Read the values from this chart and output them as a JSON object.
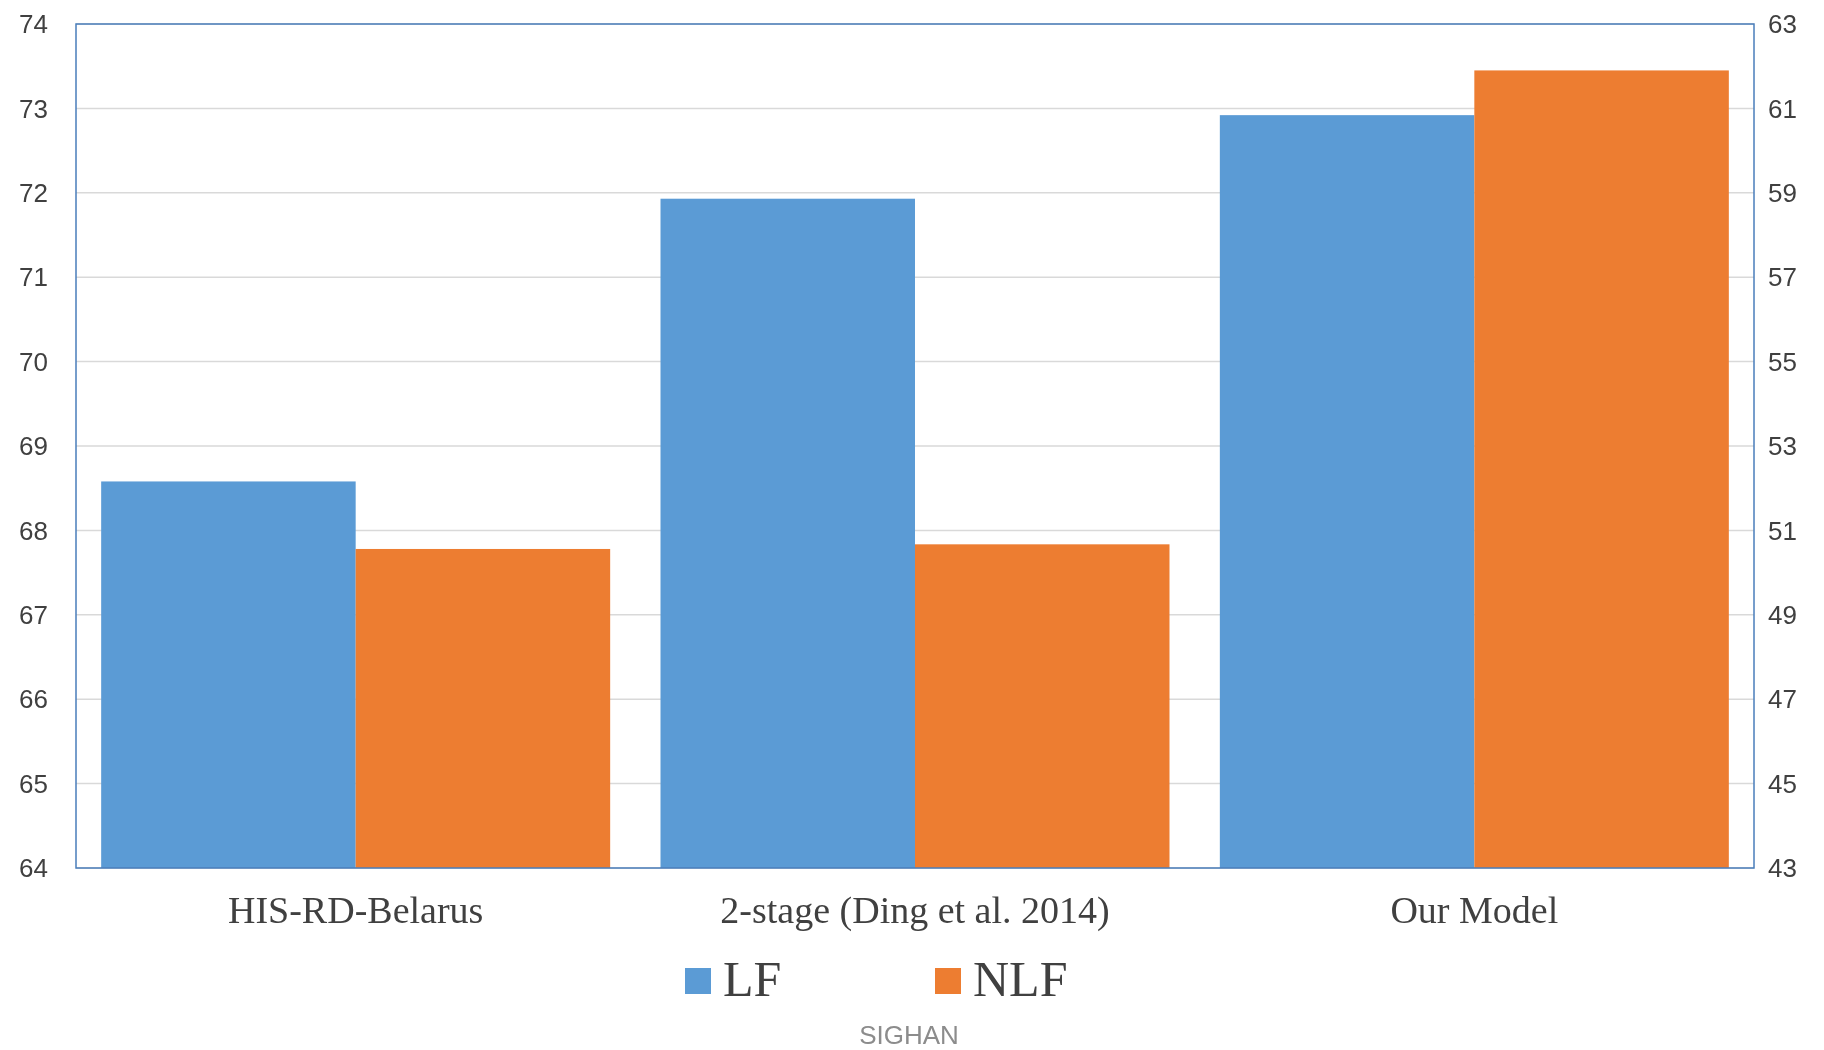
{
  "chart_data": {
    "type": "bar",
    "categories": [
      "HIS-RD-Belarus",
      "2-stage (Ding et al. 2014)",
      "Our Model"
    ],
    "series": [
      {
        "name": "LF",
        "color": "#5b9bd5",
        "values": [
          68.58,
          71.93,
          72.92
        ]
      },
      {
        "name": "NLF",
        "color": "#ed7d31",
        "values": [
          50.56,
          50.67,
          61.9
        ],
        "axis": "y2"
      }
    ],
    "ylim": [
      64,
      74
    ],
    "yticks": [
      64,
      65,
      66,
      67,
      68,
      69,
      70,
      71,
      72,
      73,
      74
    ],
    "y2lim": [
      43,
      63
    ],
    "y2ticks": [
      43,
      45,
      47,
      49,
      51,
      53,
      55,
      57,
      59,
      61,
      63
    ],
    "grid": "y",
    "legend": "bottom",
    "annotations": [
      "SIGHAN"
    ]
  }
}
